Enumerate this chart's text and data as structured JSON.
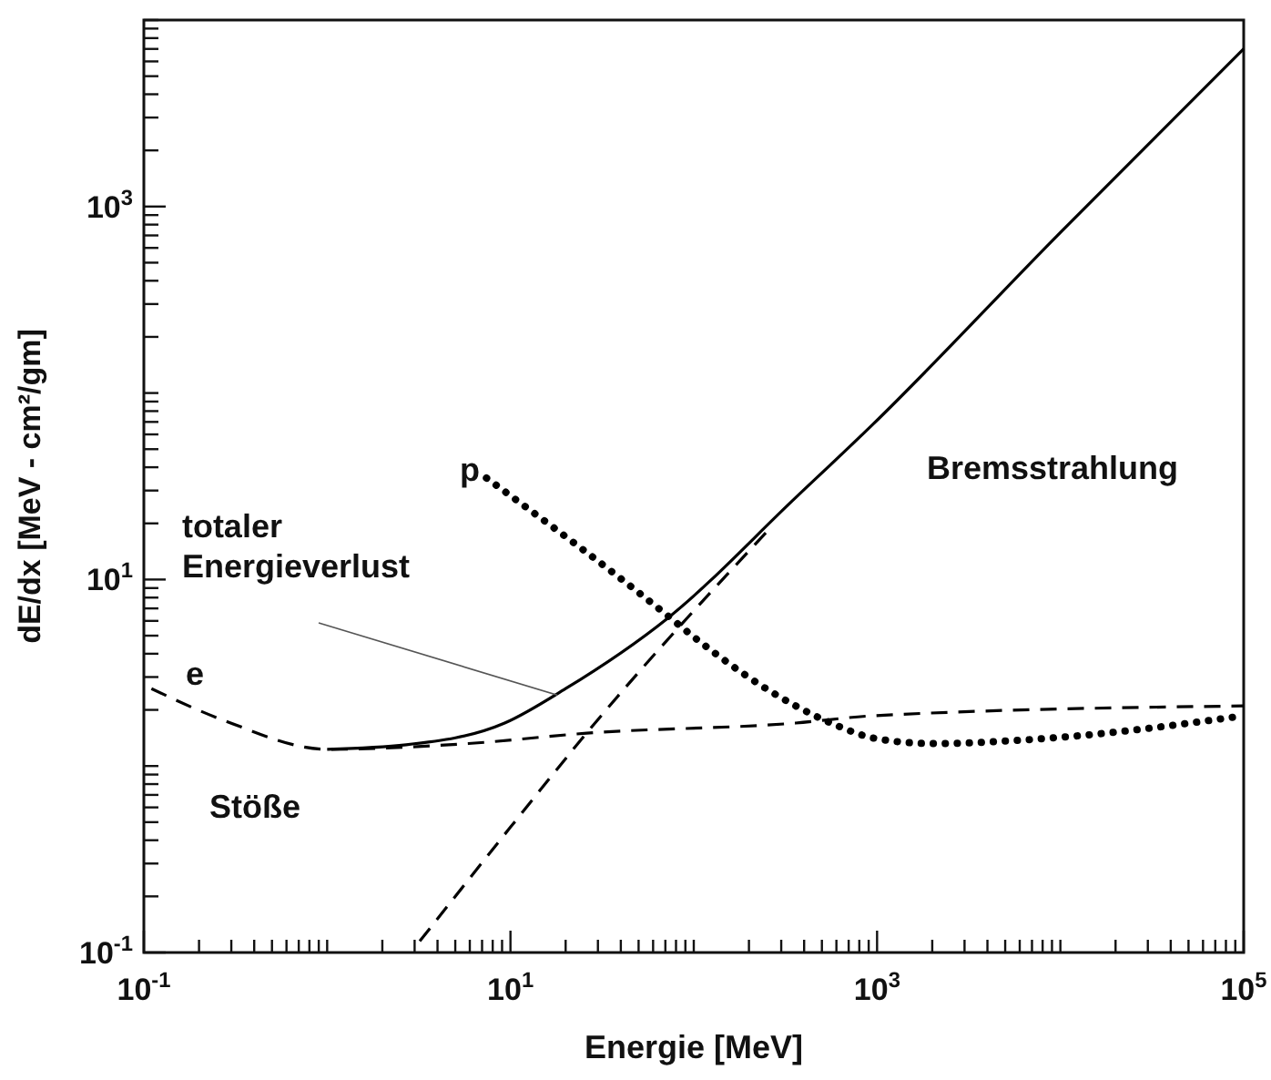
{
  "chart_data": {
    "type": "line",
    "xlabel": "Energie [MeV]",
    "ylabel": "dE/dx [MeV - cm²/gm]",
    "log": "xy",
    "xlim": [
      0.1,
      100000
    ],
    "ylim": [
      0.1,
      10000
    ],
    "xticks": [
      {
        "value": 0.1,
        "label": "10$^{-1}$"
      },
      {
        "value": 0.2,
        "label": null
      },
      {
        "value": 0.3,
        "label": null
      },
      {
        "value": 0.4,
        "label": null
      },
      {
        "value": 0.5,
        "label": null
      },
      {
        "value": 0.6,
        "label": null
      },
      {
        "value": 0.7,
        "label": null
      },
      {
        "value": 0.8,
        "label": null
      },
      {
        "value": 0.9,
        "label": null
      },
      {
        "value": 1,
        "label": null
      },
      {
        "value": 2,
        "label": null
      },
      {
        "value": 3,
        "label": null
      },
      {
        "value": 4,
        "label": null
      },
      {
        "value": 5,
        "label": null
      },
      {
        "value": 6,
        "label": null
      },
      {
        "value": 7,
        "label": null
      },
      {
        "value": 8,
        "label": null
      },
      {
        "value": 9,
        "label": null
      },
      {
        "value": 10,
        "label": "10$^{1}$"
      },
      {
        "value": 20,
        "label": null
      },
      {
        "value": 30,
        "label": null
      },
      {
        "value": 40,
        "label": null
      },
      {
        "value": 50,
        "label": null
      },
      {
        "value": 60,
        "label": null
      },
      {
        "value": 70,
        "label": null
      },
      {
        "value": 80,
        "label": null
      },
      {
        "value": 90,
        "label": null
      },
      {
        "value": 100,
        "label": null
      },
      {
        "value": 200,
        "label": null
      },
      {
        "value": 300,
        "label": null
      },
      {
        "value": 400,
        "label": null
      },
      {
        "value": 500,
        "label": null
      },
      {
        "value": 600,
        "label": null
      },
      {
        "value": 700,
        "label": null
      },
      {
        "value": 800,
        "label": null
      },
      {
        "value": 900,
        "label": null
      },
      {
        "value": 1000,
        "label": "10$^{3}$"
      },
      {
        "value": 2000,
        "label": null
      },
      {
        "value": 3000,
        "label": null
      },
      {
        "value": 4000,
        "label": null
      },
      {
        "value": 5000,
        "label": null
      },
      {
        "value": 6000,
        "label": null
      },
      {
        "value": 7000,
        "label": null
      },
      {
        "value": 8000,
        "label": null
      },
      {
        "value": 9000,
        "label": null
      },
      {
        "value": 10000,
        "label": null
      },
      {
        "value": 20000,
        "label": null
      },
      {
        "value": 30000,
        "label": null
      },
      {
        "value": 40000,
        "label": null
      },
      {
        "value": 50000,
        "label": null
      },
      {
        "value": 60000,
        "label": null
      },
      {
        "value": 70000,
        "label": null
      },
      {
        "value": 80000,
        "label": null
      },
      {
        "value": 90000,
        "label": null
      },
      {
        "value": 100000,
        "label": "10$^{5}$"
      }
    ],
    "yticks": [
      {
        "value": 0.1,
        "label": "10$^{-1}$"
      },
      {
        "value": 0.2,
        "label": null
      },
      {
        "value": 0.3,
        "label": null
      },
      {
        "value": 0.4,
        "label": null
      },
      {
        "value": 0.5,
        "label": null
      },
      {
        "value": 0.6,
        "label": null
      },
      {
        "value": 0.7,
        "label": null
      },
      {
        "value": 0.8,
        "label": null
      },
      {
        "value": 0.9,
        "label": null
      },
      {
        "value": 1,
        "label": null
      },
      {
        "value": 2,
        "label": null
      },
      {
        "value": 3,
        "label": null
      },
      {
        "value": 4,
        "label": null
      },
      {
        "value": 5,
        "label": null
      },
      {
        "value": 6,
        "label": null
      },
      {
        "value": 7,
        "label": null
      },
      {
        "value": 8,
        "label": null
      },
      {
        "value": 9,
        "label": null
      },
      {
        "value": 10,
        "label": "10$^{1}$"
      },
      {
        "value": 20,
        "label": null
      },
      {
        "value": 30,
        "label": null
      },
      {
        "value": 40,
        "label": null
      },
      {
        "value": 50,
        "label": null
      },
      {
        "value": 60,
        "label": null
      },
      {
        "value": 70,
        "label": null
      },
      {
        "value": 80,
        "label": null
      },
      {
        "value": 90,
        "label": null
      },
      {
        "value": 100,
        "label": null
      },
      {
        "value": 200,
        "label": null
      },
      {
        "value": 300,
        "label": null
      },
      {
        "value": 400,
        "label": null
      },
      {
        "value": 500,
        "label": null
      },
      {
        "value": 600,
        "label": null
      },
      {
        "value": 700,
        "label": null
      },
      {
        "value": 800,
        "label": null
      },
      {
        "value": 900,
        "label": null
      },
      {
        "value": 1000,
        "label": "10$^{3}$"
      },
      {
        "value": 2000,
        "label": null
      },
      {
        "value": 3000,
        "label": null
      },
      {
        "value": 4000,
        "label": null
      },
      {
        "value": 5000,
        "label": null
      },
      {
        "value": 6000,
        "label": null
      },
      {
        "value": 7000,
        "label": null
      },
      {
        "value": 8000,
        "label": null
      },
      {
        "value": 9000,
        "label": null
      },
      {
        "value": 10000,
        "label": null
      }
    ],
    "series": [
      {
        "color": "#000000",
        "line_style": "dashed",
        "x": [
          0.11,
          0.28,
          1.0,
          5.9,
          26,
          360,
          950,
          100000
        ],
        "values": [
          2.6,
          1.74,
          1.23,
          1.32,
          1.5,
          1.7,
          1.86,
          2.1
        ]
      },
      {
        "color": "#000000",
        "line_style": "solid",
        "x": [
          1.0,
          2.7,
          9.3,
          20,
          72,
          360,
          950,
          9500,
          100000
        ],
        "values": [
          1.23,
          1.3,
          1.7,
          2.6,
          6.2,
          27.5,
          68,
          690,
          7000
        ]
      },
      {
        "color": "#000000",
        "line_style": "dashed",
        "x": [
          3.2,
          10,
          26,
          263
        ],
        "values": [
          0.115,
          0.47,
          1.5,
          19
        ]
      },
      {
        "color": "#000000",
        "line_style": "dotted",
        "x": [
          7.4,
          72,
          98,
          360,
          560,
          1000,
          2000,
          9500,
          100000
        ],
        "values": [
          35,
          6.4,
          5,
          2.1,
          1.7,
          1.4,
          1.32,
          1.42,
          1.86
        ]
      }
    ],
    "annotations": [
      "e",
      "p",
      {
        "text": "totaler\nEnergieverlust",
        "x": 18,
        "y": 2.4
      },
      "Stöße",
      "Bremsstrahlung"
    ]
  }
}
